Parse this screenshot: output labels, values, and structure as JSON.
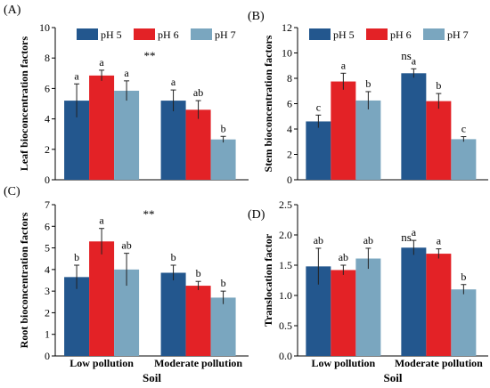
{
  "chart_data": [
    {
      "type": "bar",
      "panel_label": "(A)",
      "ylabel": "Leaf bioconcentration factors",
      "xlabel": "",
      "categories": [
        "Low pollution",
        "Moderate pollution"
      ],
      "ylim": [
        0,
        10
      ],
      "yticks": [
        0,
        2,
        4,
        6,
        8,
        10
      ],
      "legend": "top",
      "annotation": "**",
      "series": [
        {
          "name": "pH 5",
          "color": "#23578e",
          "values": [
            5.2,
            5.2
          ],
          "errors": [
            1.1,
            0.7
          ],
          "letters": [
            "a",
            "a"
          ]
        },
        {
          "name": "pH 6",
          "color": "#e32226",
          "values": [
            6.85,
            4.6
          ],
          "errors": [
            0.35,
            0.6
          ],
          "letters": [
            "a",
            "ab"
          ]
        },
        {
          "name": "pH 7",
          "color": "#7aa6bf",
          "values": [
            5.85,
            2.65
          ],
          "errors": [
            0.65,
            0.2
          ],
          "letters": [
            "a",
            "b"
          ]
        }
      ]
    },
    {
      "type": "bar",
      "panel_label": "(B)",
      "ylabel": "Stem bioconcentration factors",
      "xlabel": "",
      "categories": [
        "Low pollution",
        "Moderate pollution"
      ],
      "ylim": [
        0,
        12
      ],
      "yticks": [
        0,
        2,
        4,
        6,
        8,
        10,
        12
      ],
      "legend": "top",
      "annotation": "ns",
      "series": [
        {
          "name": "pH 5",
          "color": "#23578e",
          "values": [
            4.6,
            8.4
          ],
          "errors": [
            0.5,
            0.35
          ],
          "letters": [
            "c",
            "a"
          ]
        },
        {
          "name": "pH 6",
          "color": "#e32226",
          "values": [
            7.75,
            6.2
          ],
          "errors": [
            0.65,
            0.6
          ],
          "letters": [
            "a",
            "b"
          ]
        },
        {
          "name": "pH 7",
          "color": "#7aa6bf",
          "values": [
            6.25,
            3.2
          ],
          "errors": [
            0.7,
            0.2
          ],
          "letters": [
            "b",
            "c"
          ]
        }
      ]
    },
    {
      "type": "bar",
      "panel_label": "(C)",
      "ylabel": "Root bioconcentration factors",
      "xlabel": "Soil",
      "categories": [
        "Low pollution",
        "Moderate pollution"
      ],
      "ylim": [
        0,
        7
      ],
      "yticks": [
        0,
        1,
        2,
        3,
        4,
        5,
        6,
        7
      ],
      "legend": "none",
      "annotation": "**",
      "series": [
        {
          "name": "pH 5",
          "color": "#23578e",
          "values": [
            3.65,
            3.85
          ],
          "errors": [
            0.55,
            0.35
          ],
          "letters": [
            "b",
            "b"
          ]
        },
        {
          "name": "pH 6",
          "color": "#e32226",
          "values": [
            5.3,
            3.25
          ],
          "errors": [
            0.6,
            0.2
          ],
          "letters": [
            "a",
            "b"
          ]
        },
        {
          "name": "pH 7",
          "color": "#7aa6bf",
          "values": [
            4.0,
            2.7
          ],
          "errors": [
            0.75,
            0.3
          ],
          "letters": [
            "ab",
            "b"
          ]
        }
      ]
    },
    {
      "type": "bar",
      "panel_label": "(D)",
      "ylabel": "Translocation factor",
      "xlabel": "Soil",
      "categories": [
        "Low pollution",
        "Moderate pollution"
      ],
      "ylim": [
        0,
        2.5
      ],
      "yticks": [
        0.0,
        0.5,
        1.0,
        1.5,
        2.0,
        2.5
      ],
      "yticks_decimals": 1,
      "legend": "none",
      "annotation": "ns",
      "series": [
        {
          "name": "pH 5",
          "color": "#23578e",
          "values": [
            1.48,
            1.79
          ],
          "errors": [
            0.3,
            0.12
          ],
          "letters": [
            "ab",
            "a"
          ]
        },
        {
          "name": "pH 6",
          "color": "#e32226",
          "values": [
            1.42,
            1.69
          ],
          "errors": [
            0.08,
            0.08
          ],
          "letters": [
            "ab",
            "a"
          ]
        },
        {
          "name": "pH 7",
          "color": "#7aa6bf",
          "values": [
            1.61,
            1.1
          ],
          "errors": [
            0.17,
            0.08
          ],
          "letters": [
            "ab",
            "b"
          ]
        }
      ]
    }
  ]
}
